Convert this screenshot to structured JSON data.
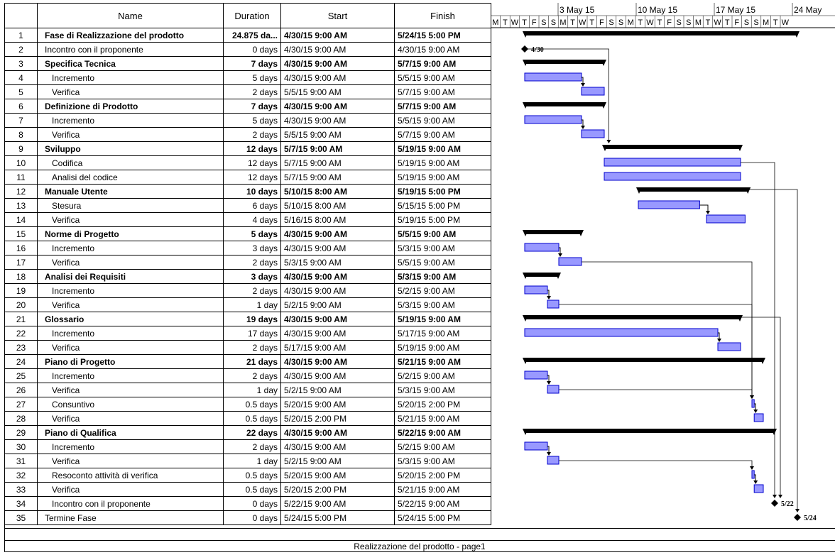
{
  "columns": {
    "num": "",
    "name": "Name",
    "duration": "Duration",
    "start": "Start",
    "finish": "Finish"
  },
  "timeline": {
    "weeks": [
      "3 May 15",
      "10 May 15",
      "17 May 15",
      "24 May"
    ],
    "day_letters": [
      "M",
      "T",
      "W",
      "T",
      "F",
      "S",
      "S",
      "M",
      "T",
      "W",
      "T",
      "F",
      "S",
      "S",
      "M",
      "T",
      "W",
      "T",
      "F",
      "S",
      "S",
      "M",
      "T",
      "W",
      "T",
      "F",
      "S",
      "S",
      "M",
      "T",
      "W"
    ]
  },
  "tasks": [
    {
      "id": "1",
      "name": "Fase di Realizzazione del prodotto",
      "duration": "24.875 da...",
      "start": "4/30/15 9:00 AM",
      "finish": "5/24/15 5:00 PM",
      "level": 0,
      "summary": true,
      "s": 2.0,
      "e": 26.0
    },
    {
      "id": "2",
      "name": "Incontro con il proponente",
      "duration": "0 days",
      "start": "4/30/15 9:00 AM",
      "finish": "4/30/15 9:00 AM",
      "level": 1,
      "milestone": true,
      "s": 2.0,
      "label": "4/30"
    },
    {
      "id": "3",
      "name": "Specifica Tecnica",
      "duration": "7 days",
      "start": "4/30/15 9:00 AM",
      "finish": "5/7/15 9:00 AM",
      "level": 1,
      "summary": true,
      "s": 2.0,
      "e": 9.0
    },
    {
      "id": "4",
      "name": "Incremento",
      "duration": "5 days",
      "start": "4/30/15 9:00 AM",
      "finish": "5/5/15 9:00 AM",
      "level": 2,
      "s": 2.0,
      "e": 7.0
    },
    {
      "id": "5",
      "name": "Verifica",
      "duration": "2 days",
      "start": "5/5/15 9:00 AM",
      "finish": "5/7/15 9:00 AM",
      "level": 2,
      "s": 7.0,
      "e": 9.0
    },
    {
      "id": "6",
      "name": "Definizione di Prodotto",
      "duration": "7 days",
      "start": "4/30/15 9:00 AM",
      "finish": "5/7/15 9:00 AM",
      "level": 1,
      "summary": true,
      "s": 2.0,
      "e": 9.0
    },
    {
      "id": "7",
      "name": "Incremento",
      "duration": "5 days",
      "start": "4/30/15 9:00 AM",
      "finish": "5/5/15 9:00 AM",
      "level": 2,
      "s": 2.0,
      "e": 7.0
    },
    {
      "id": "8",
      "name": "Verifica",
      "duration": "2 days",
      "start": "5/5/15 9:00 AM",
      "finish": "5/7/15 9:00 AM",
      "level": 2,
      "s": 7.0,
      "e": 9.0
    },
    {
      "id": "9",
      "name": "Sviluppo",
      "duration": "12 days",
      "start": "5/7/15 9:00 AM",
      "finish": "5/19/15 9:00 AM",
      "level": 1,
      "summary": true,
      "s": 9.0,
      "e": 21.0
    },
    {
      "id": "10",
      "name": "Codifica",
      "duration": "12 days",
      "start": "5/7/15 9:00 AM",
      "finish": "5/19/15 9:00 AM",
      "level": 2,
      "s": 9.0,
      "e": 21.0
    },
    {
      "id": "11",
      "name": "Analisi del codice",
      "duration": "12 days",
      "start": "5/7/15 9:00 AM",
      "finish": "5/19/15 9:00 AM",
      "level": 2,
      "s": 9.0,
      "e": 21.0
    },
    {
      "id": "12",
      "name": "Manuale Utente",
      "duration": "10 days",
      "start": "5/10/15 8:00 AM",
      "finish": "5/19/15 5:00 PM",
      "level": 1,
      "summary": true,
      "s": 12.0,
      "e": 21.7
    },
    {
      "id": "13",
      "name": "Stesura",
      "duration": "6 days",
      "start": "5/10/15 8:00 AM",
      "finish": "5/15/15 5:00 PM",
      "level": 2,
      "s": 12.0,
      "e": 17.4
    },
    {
      "id": "14",
      "name": "Verifica",
      "duration": "4 days",
      "start": "5/16/15 8:00 AM",
      "finish": "5/19/15 5:00 PM",
      "level": 2,
      "s": 18.0,
      "e": 21.4
    },
    {
      "id": "15",
      "name": "Norme di Progetto",
      "duration": "5 days",
      "start": "4/30/15 9:00 AM",
      "finish": "5/5/15 9:00 AM",
      "level": 1,
      "summary": true,
      "s": 2.0,
      "e": 7.0
    },
    {
      "id": "16",
      "name": "Incremento",
      "duration": "3 days",
      "start": "4/30/15 9:00 AM",
      "finish": "5/3/15 9:00 AM",
      "level": 2,
      "s": 2.0,
      "e": 5.0
    },
    {
      "id": "17",
      "name": "Verifica",
      "duration": "2 days",
      "start": "5/3/15 9:00 AM",
      "finish": "5/5/15 9:00 AM",
      "level": 2,
      "s": 5.0,
      "e": 7.0
    },
    {
      "id": "18",
      "name": "Analisi dei Requisiti",
      "duration": "3 days",
      "start": "4/30/15 9:00 AM",
      "finish": "5/3/15 9:00 AM",
      "level": 1,
      "summary": true,
      "s": 2.0,
      "e": 5.0
    },
    {
      "id": "19",
      "name": "Incremento",
      "duration": "2 days",
      "start": "4/30/15 9:00 AM",
      "finish": "5/2/15 9:00 AM",
      "level": 2,
      "s": 2.0,
      "e": 4.0
    },
    {
      "id": "20",
      "name": "Verifica",
      "duration": "1 day",
      "start": "5/2/15 9:00 AM",
      "finish": "5/3/15 9:00 AM",
      "level": 2,
      "s": 4.0,
      "e": 5.0
    },
    {
      "id": "21",
      "name": "Glossario",
      "duration": "19 days",
      "start": "4/30/15 9:00 AM",
      "finish": "5/19/15 9:00 AM",
      "level": 1,
      "summary": true,
      "s": 2.0,
      "e": 21.0
    },
    {
      "id": "22",
      "name": "Incremento",
      "duration": "17 days",
      "start": "4/30/15 9:00 AM",
      "finish": "5/17/15 9:00 AM",
      "level": 2,
      "s": 2.0,
      "e": 19.0
    },
    {
      "id": "23",
      "name": "Verifica",
      "duration": "2 days",
      "start": "5/17/15 9:00 AM",
      "finish": "5/19/15 9:00 AM",
      "level": 2,
      "s": 19.0,
      "e": 21.0
    },
    {
      "id": "24",
      "name": "Piano di Progetto",
      "duration": "21 days",
      "start": "4/30/15 9:00 AM",
      "finish": "5/21/15 9:00 AM",
      "level": 1,
      "summary": true,
      "s": 2.0,
      "e": 23.0
    },
    {
      "id": "25",
      "name": "Incremento",
      "duration": "2 days",
      "start": "4/30/15 9:00 AM",
      "finish": "5/2/15 9:00 AM",
      "level": 2,
      "s": 2.0,
      "e": 4.0
    },
    {
      "id": "26",
      "name": "Verifica",
      "duration": "1 day",
      "start": "5/2/15 9:00 AM",
      "finish": "5/3/15 9:00 AM",
      "level": 2,
      "s": 4.0,
      "e": 5.0
    },
    {
      "id": "27",
      "name": "Consuntivo",
      "duration": "0.5 days",
      "start": "5/20/15 9:00 AM",
      "finish": "5/20/15 2:00 PM",
      "level": 2,
      "s": 22.0,
      "e": 22.2
    },
    {
      "id": "28",
      "name": "Verifica",
      "duration": "0.5 days",
      "start": "5/20/15 2:00 PM",
      "finish": "5/21/15 9:00 AM",
      "level": 2,
      "s": 22.2,
      "e": 23.0
    },
    {
      "id": "29",
      "name": "Piano di Qualifica",
      "duration": "22 days",
      "start": "4/30/15 9:00 AM",
      "finish": "5/22/15 9:00 AM",
      "level": 1,
      "summary": true,
      "s": 2.0,
      "e": 24.0
    },
    {
      "id": "30",
      "name": "Incremento",
      "duration": "2 days",
      "start": "4/30/15 9:00 AM",
      "finish": "5/2/15 9:00 AM",
      "level": 2,
      "s": 2.0,
      "e": 4.0
    },
    {
      "id": "31",
      "name": "Verifica",
      "duration": "1 day",
      "start": "5/2/15 9:00 AM",
      "finish": "5/3/15 9:00 AM",
      "level": 2,
      "s": 4.0,
      "e": 5.0
    },
    {
      "id": "32",
      "name": "Resoconto attività di verifica",
      "duration": "0.5 days",
      "start": "5/20/15 9:00 AM",
      "finish": "5/20/15 2:00 PM",
      "level": 2,
      "s": 22.0,
      "e": 22.2
    },
    {
      "id": "33",
      "name": "Verifica",
      "duration": "0.5 days",
      "start": "5/20/15 2:00 PM",
      "finish": "5/21/15 9:00 AM",
      "level": 2,
      "s": 22.2,
      "e": 23.0
    },
    {
      "id": "34",
      "name": "Incontro con il proponente",
      "duration": "0 days",
      "start": "5/22/15 9:00 AM",
      "finish": "5/22/15 9:00 AM",
      "level": 2,
      "milestone": true,
      "s": 24.0,
      "label": "5/22"
    },
    {
      "id": "35",
      "name": "Termine Fase",
      "duration": "0 days",
      "start": "5/24/15 5:00 PM",
      "finish": "5/24/15 5:00 PM",
      "level": 1,
      "milestone": true,
      "s": 26.0,
      "label": "5/24"
    }
  ],
  "footer": "Realizzazione del prodotto  -  page1",
  "colors": {
    "task_fill": "#9999ff",
    "task_border": "#0000cc",
    "summary": "#000000",
    "line": "#000000"
  }
}
